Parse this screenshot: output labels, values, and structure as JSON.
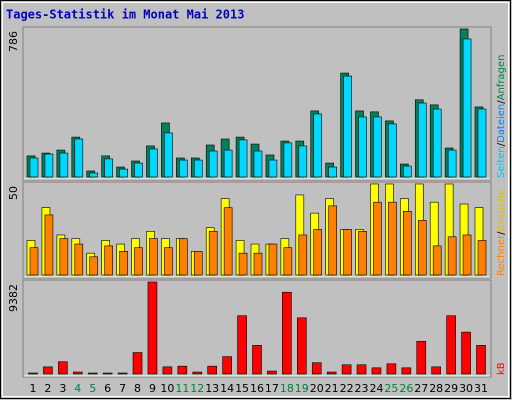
{
  "chart_data": [
    {
      "type": "bar",
      "title": "Tages-Statistik im Monat Mai 2013",
      "ylim": [
        0,
        786
      ],
      "yticks": [
        786
      ],
      "right_label": [
        {
          "text": "Seiten",
          "color": "#00c0ff"
        },
        {
          "text": "/",
          "color": "#000000"
        },
        {
          "text": "Dateien",
          "color": "#0080ff"
        },
        {
          "text": "/",
          "color": "#000000"
        },
        {
          "text": "Anfragen",
          "color": "#008040"
        }
      ],
      "series": [
        {
          "color": "#00805c",
          "values": [
            112,
            127,
            143,
            212,
            32,
            112,
            53,
            85,
            165,
            287,
            101,
            101,
            170,
            202,
            212,
            175,
            117,
            191,
            191,
            351,
            74,
            552,
            351,
            346,
            298,
            69,
            410,
            383,
            154,
            786,
            372
          ]
        },
        {
          "color": "#00d8ff",
          "values": [
            101,
            122,
            127,
            202,
            21,
            96,
            42,
            74,
            149,
            234,
            90,
            90,
            138,
            143,
            197,
            138,
            90,
            181,
            165,
            335,
            53,
            536,
            319,
            319,
            282,
            58,
            393,
            361,
            143,
            733,
            361
          ]
        }
      ]
    },
    {
      "type": "bar",
      "ylim": [
        0,
        50
      ],
      "yticks": [
        50
      ],
      "right_label": [
        {
          "text": "Rechner",
          "color": "#ff8000"
        },
        {
          "text": "/",
          "color": "#000000"
        },
        {
          "text": "Besuche",
          "color": "#e0c000"
        }
      ],
      "series": [
        {
          "color": "#ffff00",
          "values": [
            19,
            37,
            22,
            20,
            12,
            19,
            17,
            20,
            24,
            20,
            20,
            13,
            26,
            42,
            19,
            17,
            17,
            20,
            44,
            34,
            42,
            25,
            25,
            50,
            50,
            42,
            50,
            40,
            50,
            39,
            37
          ]
        },
        {
          "color": "#ff8000",
          "values": [
            15,
            33,
            20,
            17,
            10,
            16,
            13,
            15,
            20,
            15,
            20,
            13,
            24,
            37,
            12,
            12,
            17,
            15,
            22,
            25,
            38,
            25,
            24,
            40,
            40,
            35,
            30,
            16,
            21,
            22,
            19
          ]
        }
      ]
    },
    {
      "type": "bar",
      "ylim": [
        0,
        9382
      ],
      "yticks": [
        9382
      ],
      "right_label": [
        {
          "text": "kB",
          "color": "#ff0000"
        }
      ],
      "categories": [
        "1",
        "2",
        "3",
        "4",
        "5",
        "6",
        "7",
        "8",
        "9",
        "10",
        "11",
        "12",
        "13",
        "14",
        "15",
        "16",
        "17",
        "18",
        "19",
        "20",
        "21",
        "22",
        "23",
        "24",
        "25",
        "26",
        "27",
        "28",
        "29",
        "30",
        "31"
      ],
      "category_colors": [
        "#000000",
        "#000000",
        "#000000",
        "#008040",
        "#008040",
        "#000000",
        "#000000",
        "#000000",
        "#000000",
        "#000000",
        "#008040",
        "#008040",
        "#000000",
        "#000000",
        "#000000",
        "#000000",
        "#000000",
        "#008040",
        "#008040",
        "#000000",
        "#000000",
        "#000000",
        "#000000",
        "#000000",
        "#008040",
        "#008040",
        "#000000",
        "#000000",
        "#000000",
        "#000000",
        "#000000"
      ],
      "series": [
        {
          "color": "#ff0000",
          "values": [
            100,
            730,
            1250,
            200,
            50,
            50,
            50,
            2190,
            9382,
            730,
            800,
            200,
            800,
            1770,
            5940,
            2920,
            300,
            8340,
            5730,
            1150,
            200,
            940,
            940,
            630,
            1040,
            630,
            3340,
            730,
            5940,
            4270,
            2920
          ]
        }
      ]
    }
  ]
}
